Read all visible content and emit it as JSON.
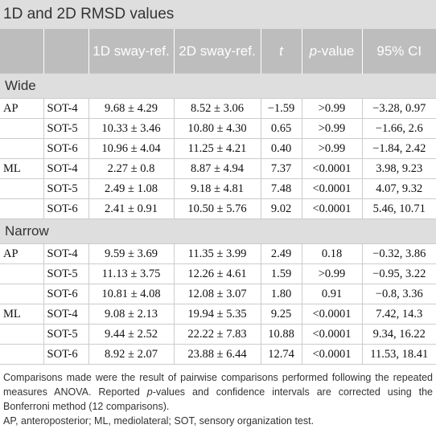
{
  "caption": "1D and 2D RMSD values",
  "columns": [
    "",
    "",
    "1D sway-ref.",
    "2D sway-ref.",
    "t",
    "p-value",
    "95% CI"
  ],
  "sections": [
    {
      "label": "Wide",
      "rows": [
        {
          "group": "AP",
          "sot": "SOT-4",
          "d1": "9.68 ± 4.29",
          "d2": "8.52 ± 3.06",
          "t": "−1.59",
          "p": ">0.99",
          "ci": "−3.28, 0.97"
        },
        {
          "group": "",
          "sot": "SOT-5",
          "d1": "10.33 ± 3.46",
          "d2": "10.80 ± 4.30",
          "t": "0.65",
          "p": ">0.99",
          "ci": "−1.66, 2.6"
        },
        {
          "group": "",
          "sot": "SOT-6",
          "d1": "10.96 ± 4.04",
          "d2": "11.25 ± 4.21",
          "t": "0.40",
          "p": ">0.99",
          "ci": "−1.84, 2.42"
        },
        {
          "group": "ML",
          "sot": "SOT-4",
          "d1": "2.27 ± 0.8",
          "d2": "8.87 ± 4.94",
          "t": "7.37",
          "p": "<0.0001",
          "ci": "3.98, 9.23"
        },
        {
          "group": "",
          "sot": "SOT-5",
          "d1": "2.49 ± 1.08",
          "d2": "9.18 ± 4.81",
          "t": "7.48",
          "p": "<0.0001",
          "ci": "4.07, 9.32"
        },
        {
          "group": "",
          "sot": "SOT-6",
          "d1": "2.41 ± 0.91",
          "d2": "10.50 ± 5.76",
          "t": "9.02",
          "p": "<0.0001",
          "ci": "5.46, 10.71"
        }
      ]
    },
    {
      "label": "Narrow",
      "rows": [
        {
          "group": "AP",
          "sot": "SOT-4",
          "d1": "9.59 ± 3.69",
          "d2": "11.35 ± 3.99",
          "t": "2.49",
          "p": "0.18",
          "ci": "−0.32, 3.86"
        },
        {
          "group": "",
          "sot": "SOT-5",
          "d1": "11.13 ± 3.75",
          "d2": "12.26 ± 4.61",
          "t": "1.59",
          "p": ">0.99",
          "ci": "−0.95, 3.22"
        },
        {
          "group": "",
          "sot": "SOT-6",
          "d1": "10.81 ± 4.08",
          "d2": "12.08 ± 3.07",
          "t": "1.80",
          "p": "0.91",
          "ci": "−0.8, 3.36"
        },
        {
          "group": "ML",
          "sot": "SOT-4",
          "d1": "9.08 ± 2.13",
          "d2": "19.94 ± 5.35",
          "t": "9.25",
          "p": "<0.0001",
          "ci": "7.42, 14.3"
        },
        {
          "group": "",
          "sot": "SOT-5",
          "d1": "9.44 ± 2.52",
          "d2": "22.22 ± 7.83",
          "t": "10.88",
          "p": "<0.0001",
          "ci": "9.34, 16.22"
        },
        {
          "group": "",
          "sot": "SOT-6",
          "d1": "8.92 ± 2.07",
          "d2": "23.88 ± 6.44",
          "t": "12.74",
          "p": "<0.0001",
          "ci": "11.53, 18.41"
        }
      ]
    }
  ],
  "footnotes": [
    "Comparisons made were the result of pairwise comparisons performed following the repeated measures ANOVA. Reported p-values and confidence intervals are corrected using the Bonferroni method (12 comparisons).",
    "AP, anteroposterior; ML, mediolateral; SOT, sensory organization test."
  ]
}
